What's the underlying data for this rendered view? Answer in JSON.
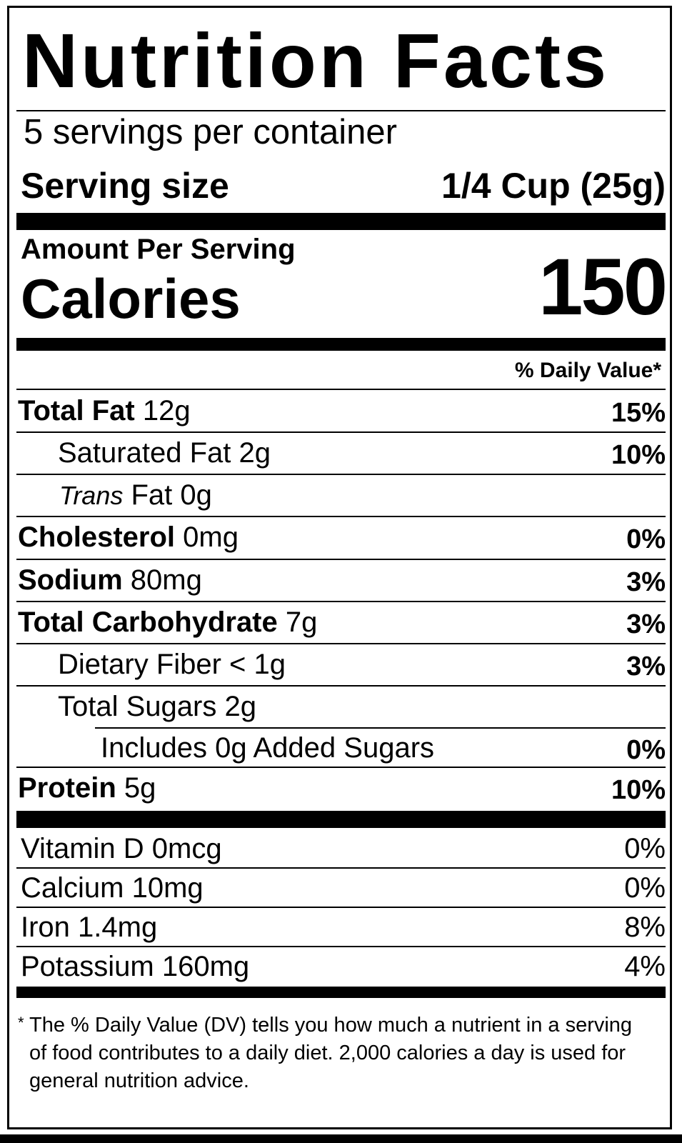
{
  "title": "Nutrition Facts",
  "servings_per_container": "5 servings per container",
  "serving_size": {
    "label": "Serving size",
    "value": "1/4 Cup (25g)"
  },
  "amount_per_serving": "Amount Per Serving",
  "calories": {
    "label": "Calories",
    "value": "150"
  },
  "daily_value_header": "% Daily Value*",
  "nutrients": [
    {
      "name": "Total Fat",
      "amount": "12g",
      "dv": "15%"
    },
    {
      "name": "Saturated Fat 2g",
      "dv": "10%"
    },
    {
      "name_italic": "Trans",
      "name": "Fat 0g"
    },
    {
      "name": "Cholesterol",
      "amount": "0mg",
      "dv": "0%"
    },
    {
      "name": "Sodium",
      "amount": "80mg",
      "dv": "3%"
    },
    {
      "name": "Total Carbohydrate",
      "amount": "7g",
      "dv": "3%"
    },
    {
      "name": "Dietary Fiber < 1g",
      "dv": "3%"
    },
    {
      "name": "Total Sugars 2g"
    },
    {
      "name": "Includes 0g Added Sugars",
      "dv": "0%"
    },
    {
      "name": "Protein",
      "amount": "5g",
      "dv": "10%"
    }
  ],
  "vitamins": [
    {
      "name": "Vitamin D 0mcg",
      "dv": "0%"
    },
    {
      "name": "Calcium 10mg",
      "dv": "0%"
    },
    {
      "name": "Iron 1.4mg",
      "dv": "8%"
    },
    {
      "name": "Potassium 160mg",
      "dv": "4%"
    }
  ],
  "footnote": {
    "marker": "*",
    "text": "The % Daily Value (DV) tells you how much a nutrient in a serving of food contributes to a daily diet. 2,000 calories a day is used for general nutrition advice."
  }
}
